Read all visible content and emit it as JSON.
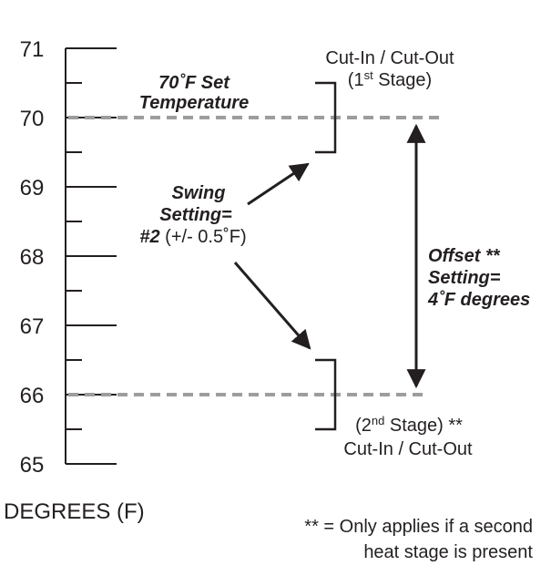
{
  "scale": {
    "ticks": [
      "71",
      "70",
      "69",
      "68",
      "67",
      "66",
      "65"
    ],
    "axis_title": "DEGREES (F)"
  },
  "set_temperature": {
    "line1": "70˚F Set",
    "line2": "Temperature"
  },
  "first_stage": {
    "line1": "Cut-In / Cut-Out",
    "line2_prefix": "(1",
    "line2_sup": "st",
    "line2_suffix": " Stage)"
  },
  "swing": {
    "line1": "Swing",
    "line2": "Setting=",
    "line3_bold": "#2",
    "line3_plain": " (+/- 0.5˚F)"
  },
  "offset": {
    "line1": "Offset **",
    "line2": "Setting=",
    "line3": "4˚F degrees"
  },
  "second_stage": {
    "line1_prefix": "(2",
    "line1_sup": "nd",
    "line1_suffix": " Stage) **",
    "line2": "Cut-In / Cut-Out"
  },
  "footnote": {
    "line1": "** = Only applies if a second",
    "line2": "heat stage is present"
  },
  "colors": {
    "ink": "#231f20",
    "dashed": "#9d9d9d"
  }
}
